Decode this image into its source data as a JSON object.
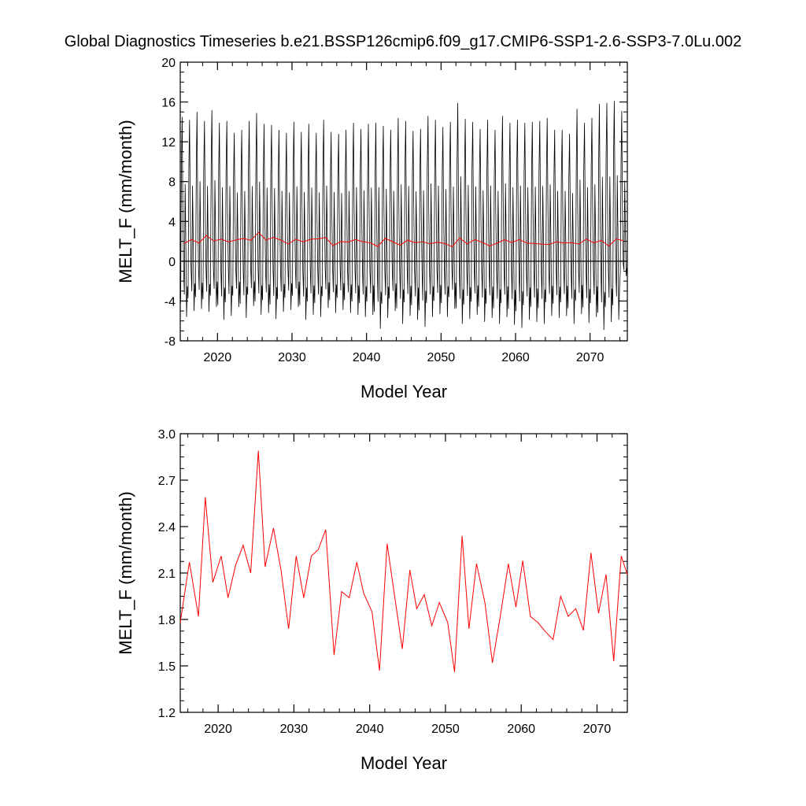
{
  "title": "Global Diagnostics Timeseries b.e21.BSSP126cmip6.f09_g17.CMIP6-SSP1-2.6-SSP3-7.0Lu.002",
  "colors": {
    "monthly": "#000000",
    "annual": "#ff0000",
    "axes": "#000000"
  },
  "chart_data": [
    {
      "type": "line",
      "xlabel": "Model Year",
      "ylabel": "MELT_F (mm/month)",
      "xlim": [
        2015,
        2075
      ],
      "ylim": [
        -8,
        20
      ],
      "xticks": [
        2020,
        2030,
        2040,
        2050,
        2060,
        2070
      ],
      "yticks": [
        -8,
        -4,
        0,
        4,
        8,
        12,
        16,
        20
      ],
      "zero_line": true,
      "series": [
        {
          "role": "monthly",
          "start_year": 2015,
          "annual_peaks": [
            14.5,
            14.2,
            15.0,
            14.1,
            15.2,
            13.9,
            14.1,
            12.9,
            13.2,
            14.1,
            14.9,
            13.8,
            13.7,
            13.2,
            12.9,
            14.0,
            13.0,
            13.8,
            12.9,
            14.2,
            13.0,
            12.8,
            13.2,
            13.9,
            13.3,
            13.8,
            13.9,
            13.6,
            13.2,
            14.4,
            14.1,
            13.1,
            13.3,
            14.6,
            14.2,
            13.5,
            14.0,
            15.9,
            14.3,
            14.0,
            13.3,
            14.2,
            13.2,
            14.6,
            13.9,
            14.2,
            13.9,
            14.0,
            14.1,
            14.4,
            13.2,
            13.2,
            12.8,
            15.3,
            13.9,
            14.4,
            15.8,
            15.9,
            16.1,
            15.1
          ],
          "annual_troughs": [
            -5.6,
            -5.0,
            -4.8,
            -5.1,
            -4.6,
            -5.9,
            -5.5,
            -4.6,
            -5.7,
            -4.5,
            -5.4,
            -5.2,
            -5.8,
            -5.1,
            -4.9,
            -4.6,
            -5.9,
            -5.4,
            -5.6,
            -4.7,
            -5.2,
            -4.9,
            -5.2,
            -5.4,
            -5.6,
            -5.4,
            -6.8,
            -5.7,
            -5.0,
            -6.3,
            -5.5,
            -5.9,
            -6.6,
            -5.6,
            -5.3,
            -5.6,
            -4.8,
            -6.3,
            -5.8,
            -5.4,
            -6.1,
            -5.7,
            -6.3,
            -5.6,
            -6.4,
            -6.7,
            -5.9,
            -6.1,
            -6.3,
            -5.5,
            -5.7,
            -5.5,
            -6.3,
            -5.3,
            -6.2,
            -5.6,
            -6.9,
            -6.1,
            -5.9,
            -1.5
          ]
        },
        {
          "role": "annual",
          "x": [
            2015.5,
            2016.5,
            2017.5,
            2018.5,
            2019.5,
            2020.5,
            2021.5,
            2022.5,
            2023.5,
            2024.5,
            2025.5,
            2026.5,
            2027.5,
            2028.5,
            2029.5,
            2030.5,
            2031.5,
            2032.5,
            2033.5,
            2034.5,
            2035.5,
            2036.5,
            2037.5,
            2038.5,
            2039.5,
            2040.5,
            2041.5,
            2042.5,
            2043.5,
            2044.5,
            2045.5,
            2046.5,
            2047.5,
            2048.5,
            2049.5,
            2050.5,
            2051.5,
            2052.5,
            2053.5,
            2054.5,
            2055.5,
            2056.5,
            2057.5,
            2058.5,
            2059.5,
            2060.5,
            2061.5,
            2062.5,
            2063.5,
            2064.5,
            2065.5,
            2066.5,
            2067.5,
            2068.5,
            2069.5,
            2070.5,
            2071.5,
            2072.5,
            2073.5,
            2074.5
          ],
          "values": [
            1.78,
            2.17,
            1.82,
            2.59,
            2.04,
            2.21,
            1.94,
            2.15,
            2.28,
            2.1,
            2.89,
            2.14,
            2.39,
            2.12,
            1.74,
            2.21,
            1.94,
            2.21,
            2.25,
            2.38,
            1.57,
            1.97,
            1.93,
            2.17,
            1.97,
            1.85,
            1.48,
            2.29,
            1.97,
            1.61,
            2.12,
            1.87,
            1.95,
            1.76,
            1.91,
            1.78,
            1.46,
            2.33,
            1.74,
            2.16,
            1.91,
            1.53,
            1.81,
            2.15,
            1.88,
            2.18,
            1.82,
            1.78,
            1.72,
            1.68,
            1.95,
            1.82,
            1.87,
            1.73,
            2.23,
            1.84,
            2.09,
            1.53,
            2.22,
            2.07
          ]
        }
      ]
    },
    {
      "type": "line",
      "xlabel": "Model Year",
      "ylabel": "MELT_F (mm/month)",
      "xlim": [
        2015,
        2074
      ],
      "ylim": [
        1.2,
        3.0
      ],
      "xticks": [
        2020,
        2030,
        2040,
        2050,
        2060,
        2070
      ],
      "yticks": [
        1.2,
        1.5,
        1.8,
        2.1,
        2.4,
        2.7,
        3.0
      ],
      "series": [
        {
          "role": "annual",
          "x": [
            2015.0,
            2016.2,
            2017.4,
            2018.3,
            2019.3,
            2020.4,
            2021.3,
            2022.3,
            2023.3,
            2024.3,
            2025.3,
            2026.2,
            2027.3,
            2028.3,
            2029.3,
            2030.3,
            2031.3,
            2032.3,
            2033.2,
            2034.2,
            2035.3,
            2036.3,
            2037.3,
            2038.3,
            2039.2,
            2040.3,
            2041.3,
            2042.3,
            2043.2,
            2044.3,
            2045.3,
            2046.2,
            2047.2,
            2048.2,
            2049.2,
            2050.3,
            2051.2,
            2052.2,
            2053.1,
            2054.1,
            2055.2,
            2056.2,
            2057.2,
            2058.3,
            2059.3,
            2060.2,
            2061.2,
            2062.2,
            2063.2,
            2064.2,
            2065.2,
            2066.2,
            2067.2,
            2068.2,
            2069.2,
            2070.2,
            2071.2,
            2072.2,
            2073.2,
            2074.0
          ],
          "values": [
            1.78,
            2.17,
            1.82,
            2.59,
            2.04,
            2.21,
            1.94,
            2.15,
            2.28,
            2.1,
            2.89,
            2.14,
            2.39,
            2.12,
            1.74,
            2.21,
            1.94,
            2.21,
            2.25,
            2.38,
            1.57,
            1.98,
            1.94,
            2.17,
            1.97,
            1.85,
            1.47,
            2.29,
            1.98,
            1.61,
            2.12,
            1.87,
            1.96,
            1.76,
            1.91,
            1.78,
            1.46,
            2.34,
            1.74,
            2.16,
            1.91,
            1.52,
            1.81,
            2.16,
            1.88,
            2.18,
            1.82,
            1.78,
            1.72,
            1.67,
            1.95,
            1.82,
            1.87,
            1.73,
            2.23,
            1.84,
            2.09,
            1.53,
            2.21,
            2.09
          ]
        }
      ]
    }
  ]
}
